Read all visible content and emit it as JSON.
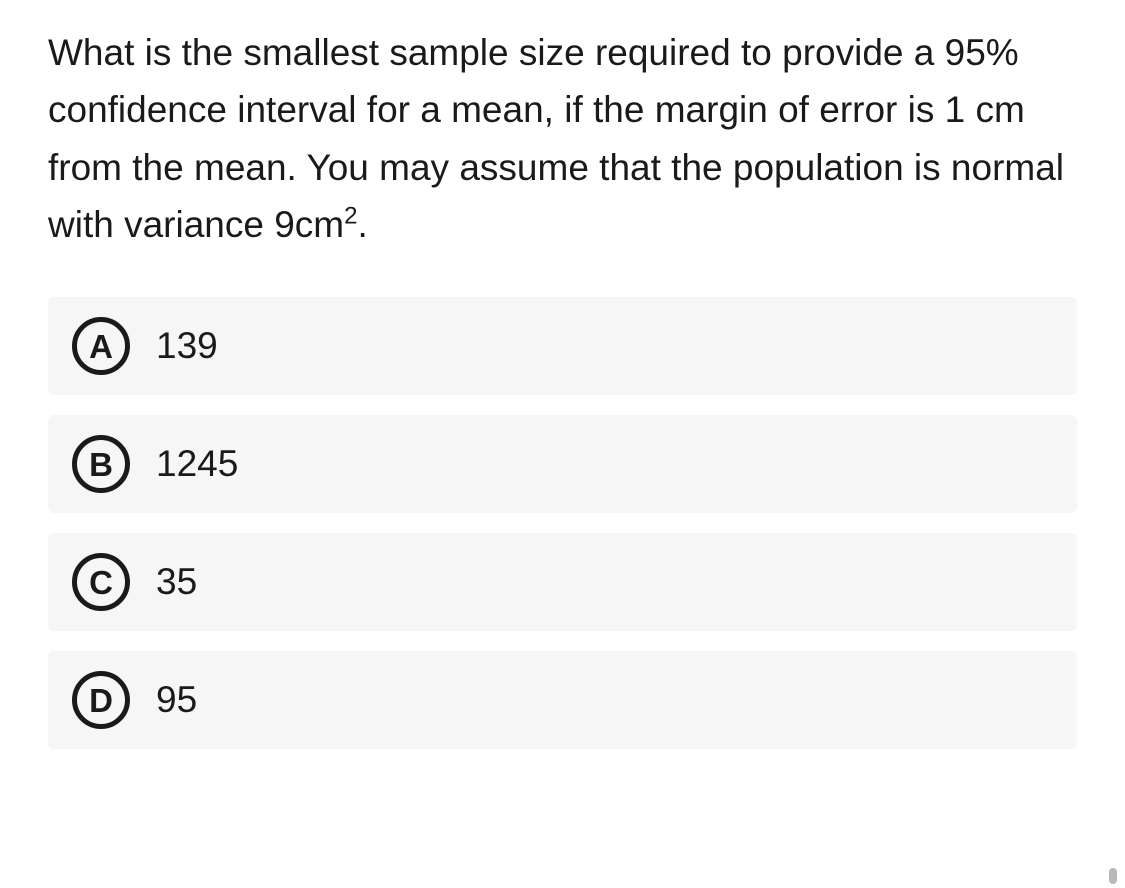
{
  "question": {
    "text_prefix": "What is the smallest sample size required to provide a 95% confidence interval for a mean, if the margin of error is 1 cm from the mean. You may assume that the population is normal with variance 9cm",
    "superscript": "2",
    "text_suffix": "."
  },
  "options": [
    {
      "letter": "A",
      "text": "139"
    },
    {
      "letter": "B",
      "text": "1245"
    },
    {
      "letter": "C",
      "text": "35"
    },
    {
      "letter": "D",
      "text": "95"
    }
  ],
  "styling": {
    "background_color": "#ffffff",
    "option_background": "#f6f6f6",
    "text_color": "#1a1a1a",
    "badge_border_color": "#1a1a1a",
    "question_fontsize": 37,
    "option_fontsize": 37,
    "badge_fontsize": 33,
    "badge_border_width": 5,
    "badge_diameter": 58
  }
}
